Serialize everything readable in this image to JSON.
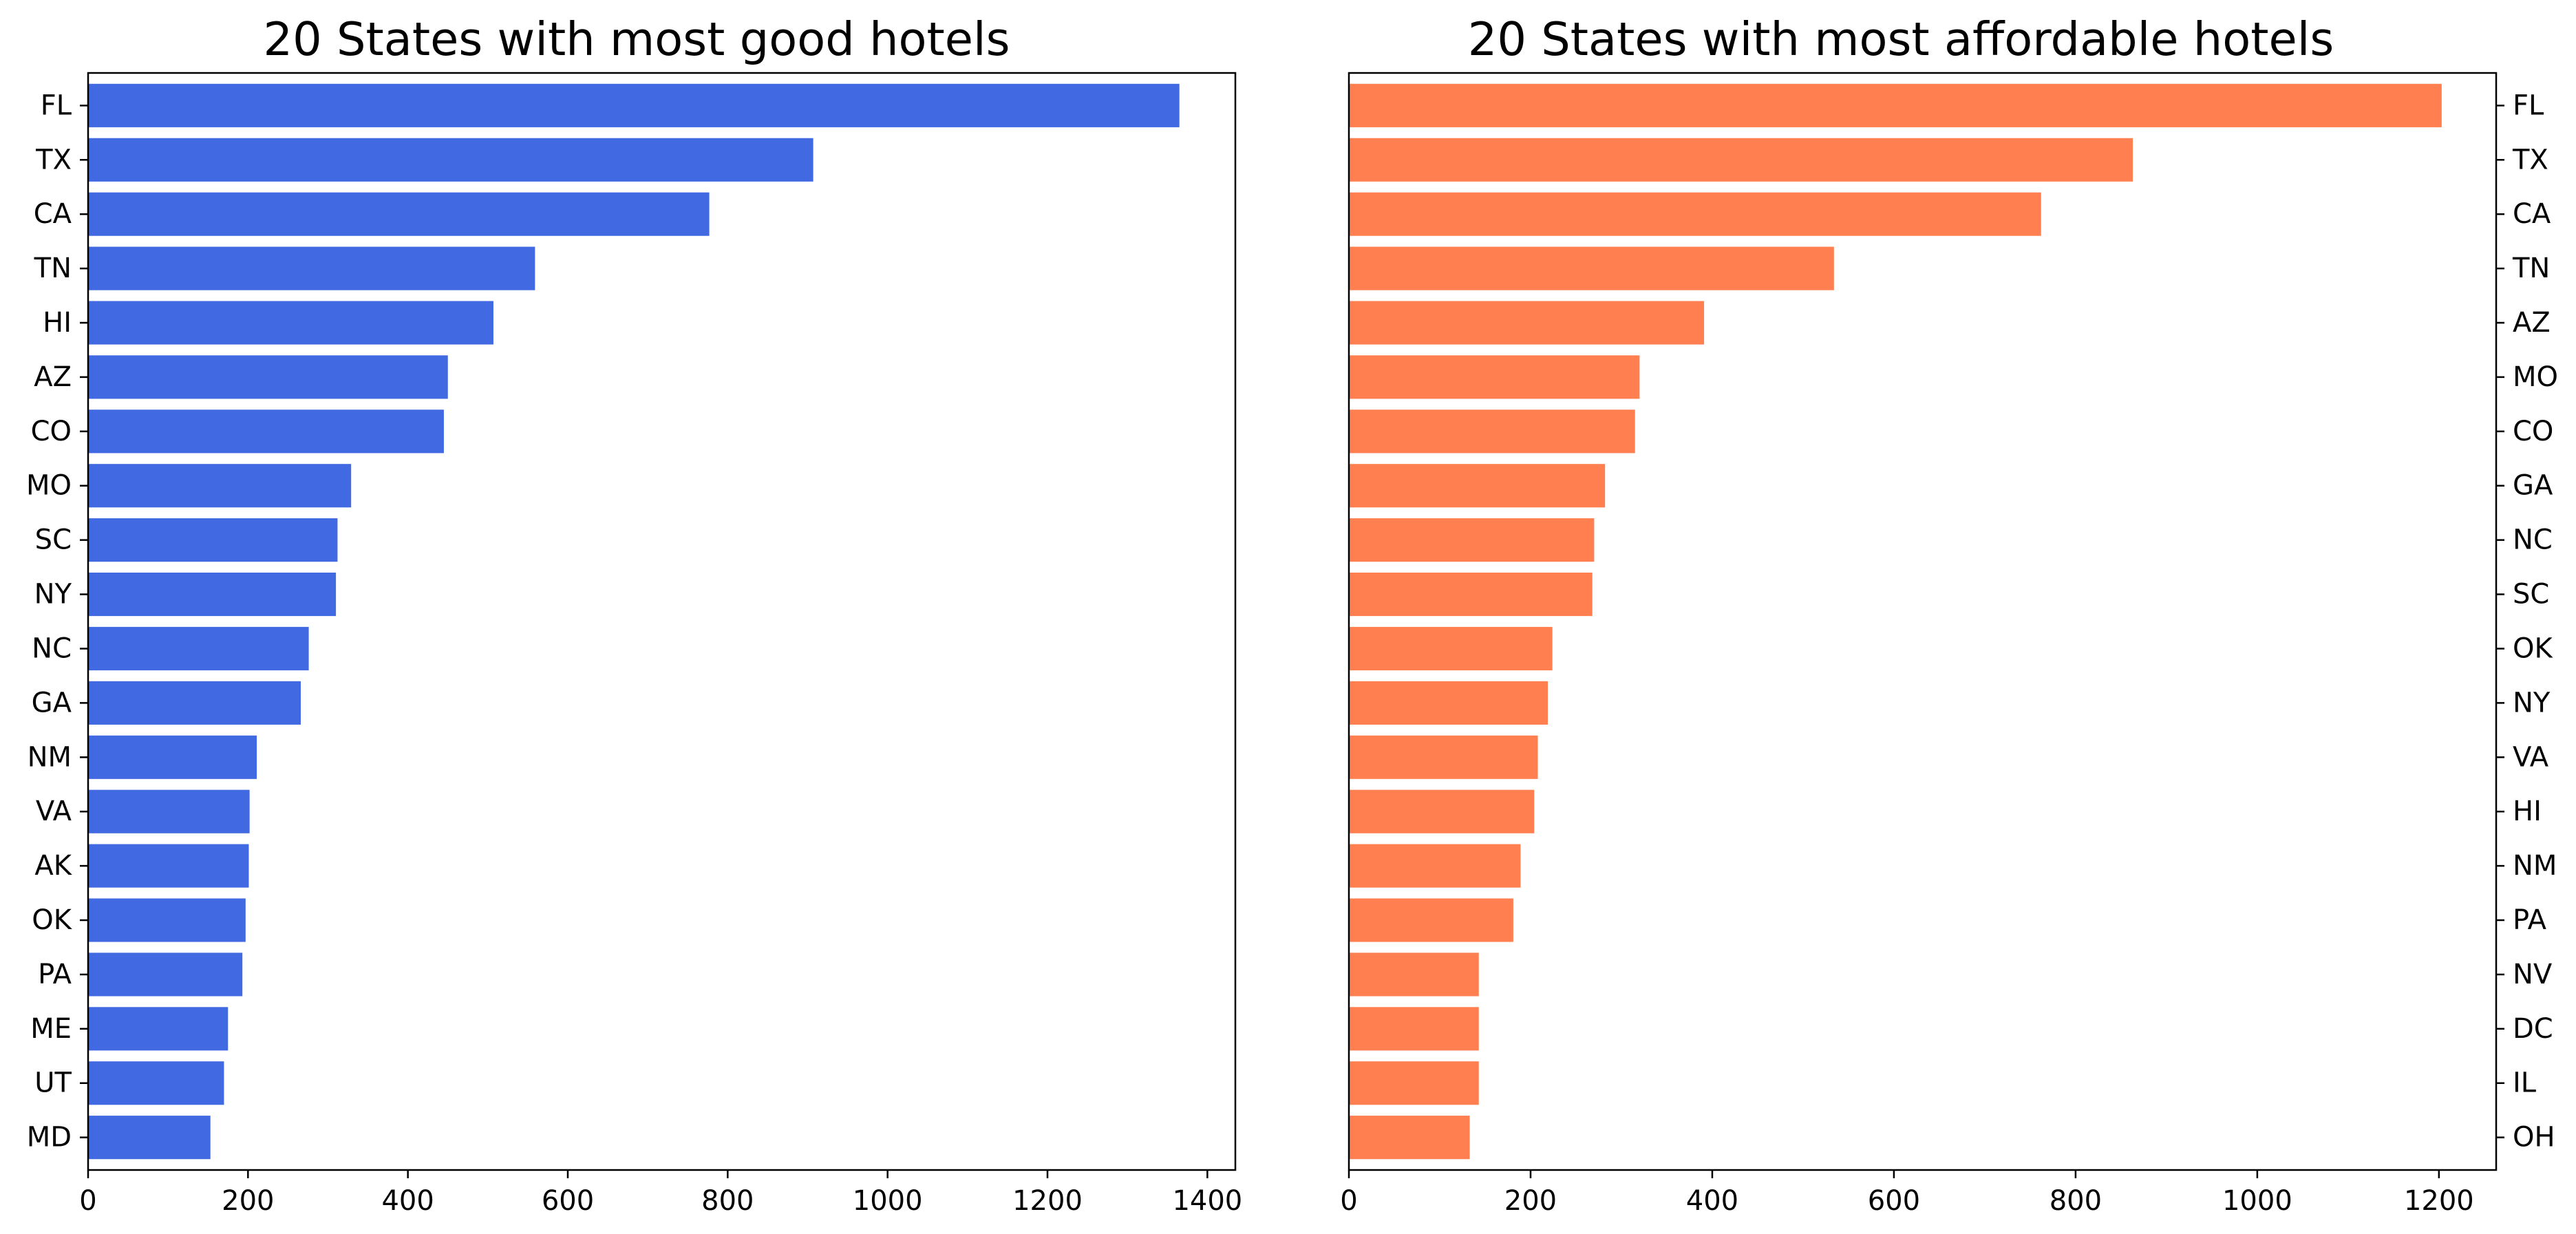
{
  "chart_data": [
    {
      "type": "bar",
      "orientation": "horizontal",
      "title": "20 States with most good hotels",
      "categories": [
        "FL",
        "TX",
        "CA",
        "TN",
        "HI",
        "AZ",
        "CO",
        "MO",
        "SC",
        "NY",
        "NC",
        "GA",
        "NM",
        "VA",
        "AK",
        "OK",
        "PA",
        "ME",
        "UT",
        "MD"
      ],
      "values": [
        1365,
        907,
        777,
        559,
        507,
        450,
        445,
        329,
        312,
        310,
        276,
        266,
        211,
        202,
        201,
        197,
        193,
        175,
        170,
        153
      ],
      "color": "#4169E1",
      "xlim": [
        0,
        1435
      ],
      "xticks": [
        0,
        200,
        400,
        600,
        800,
        1000,
        1200,
        1400
      ],
      "ytick_side": "left",
      "xlabel": "",
      "ylabel": ""
    },
    {
      "type": "bar",
      "orientation": "horizontal",
      "title": "20 States with most affordable hotels",
      "categories": [
        "FL",
        "TX",
        "CA",
        "TN",
        "AZ",
        "MO",
        "CO",
        "GA",
        "NC",
        "SC",
        "OK",
        "NY",
        "VA",
        "HI",
        "NM",
        "PA",
        "NV",
        "DC",
        "IL",
        "OH"
      ],
      "values": [
        1203,
        863,
        762,
        534,
        391,
        320,
        315,
        282,
        270,
        268,
        224,
        219,
        208,
        204,
        189,
        181,
        143,
        143,
        143,
        133
      ],
      "color": "#FF7F50",
      "xlim": [
        0,
        1263
      ],
      "xticks": [
        0,
        200,
        400,
        600,
        800,
        1000,
        1200
      ],
      "ytick_side": "right",
      "xlabel": "",
      "ylabel": ""
    }
  ]
}
